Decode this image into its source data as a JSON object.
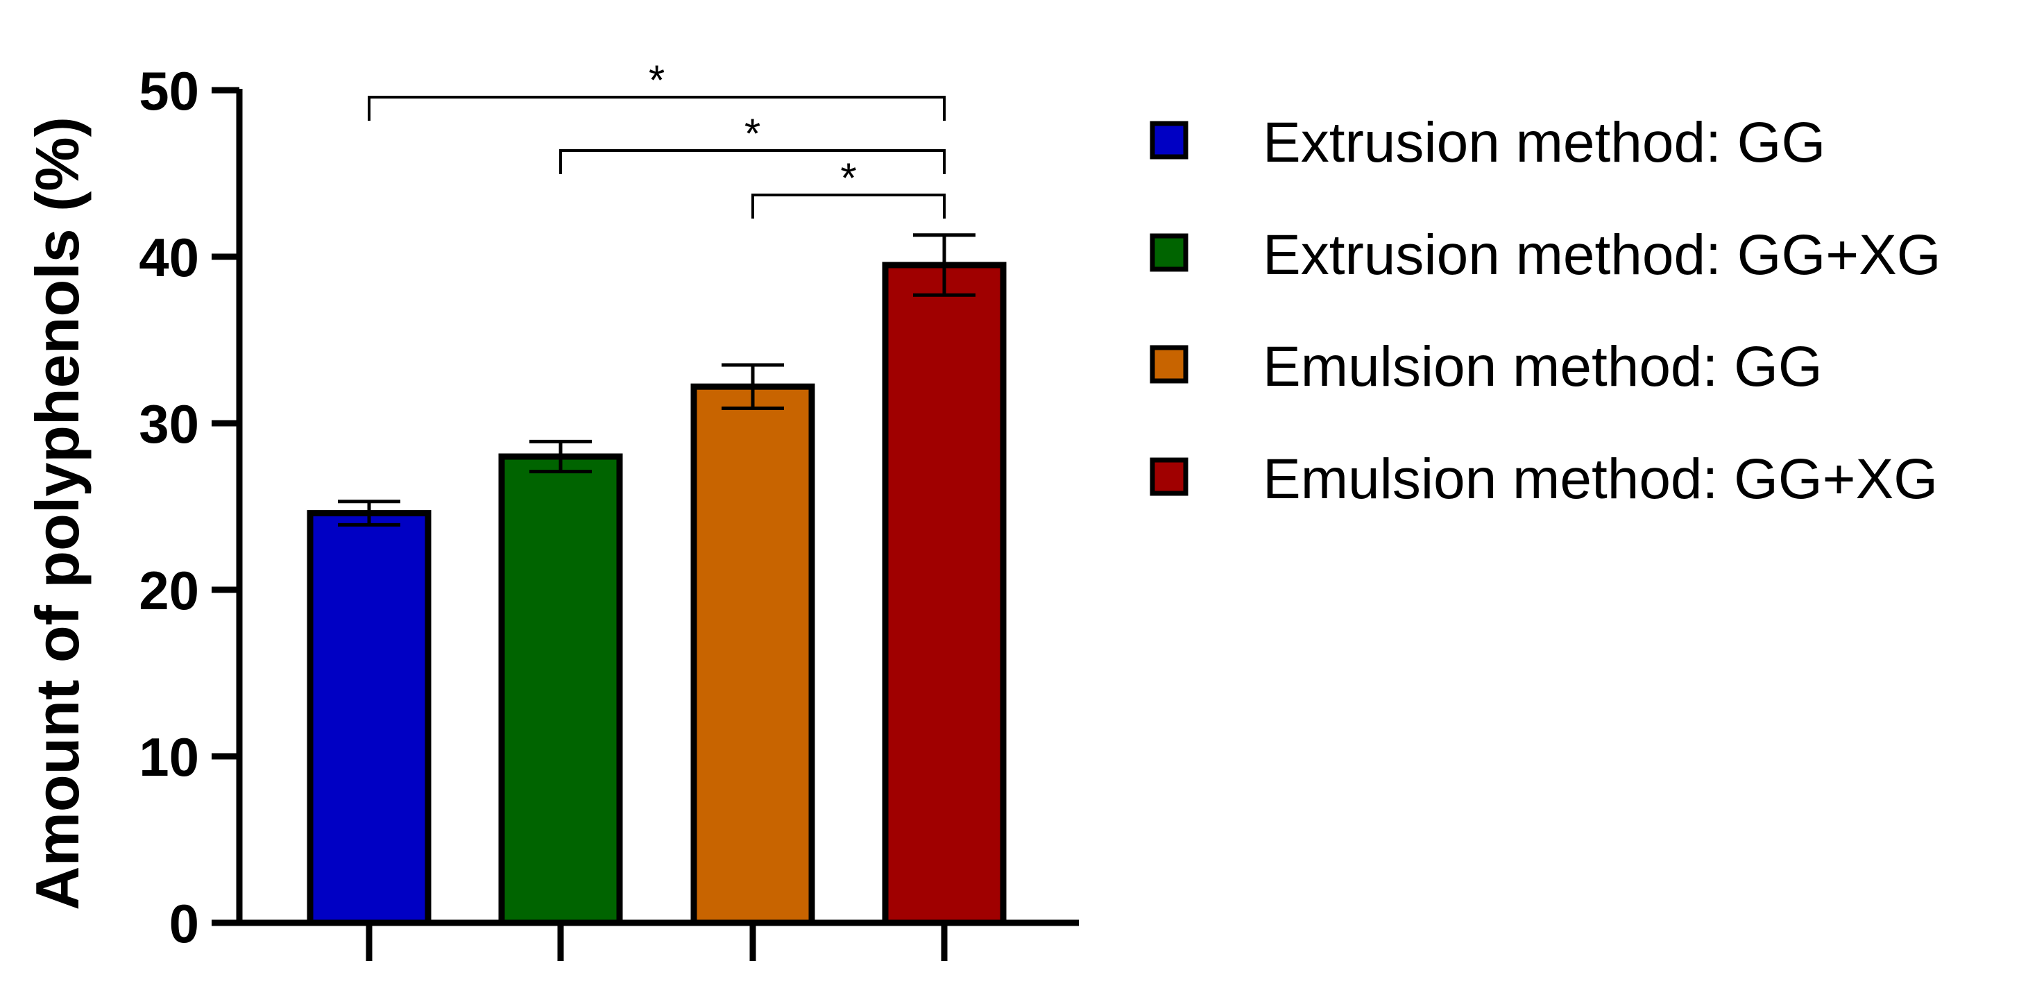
{
  "chart_data": {
    "type": "bar",
    "title": "",
    "xlabel": "",
    "ylabel": "Amount of polyphenols (%)",
    "ylim": [
      0,
      50
    ],
    "yticks": [
      0,
      10,
      20,
      30,
      40,
      50
    ],
    "grid": false,
    "legend_position": "right",
    "categories": [
      "Extrusion method: GG",
      "Extrusion method: GG+XG",
      "Emulsion method: GG",
      "Emulsion method: GG+XG"
    ],
    "values": [
      24.6,
      28.0,
      32.2,
      39.5
    ],
    "error": [
      0.7,
      0.9,
      1.3,
      1.8
    ],
    "colors": [
      "#0000c4",
      "#006400",
      "#c86400",
      "#a00000"
    ],
    "significance": [
      {
        "from": 0,
        "to": 3,
        "label": "*"
      },
      {
        "from": 1,
        "to": 3,
        "label": "*"
      },
      {
        "from": 2,
        "to": 3,
        "label": "*"
      }
    ]
  }
}
